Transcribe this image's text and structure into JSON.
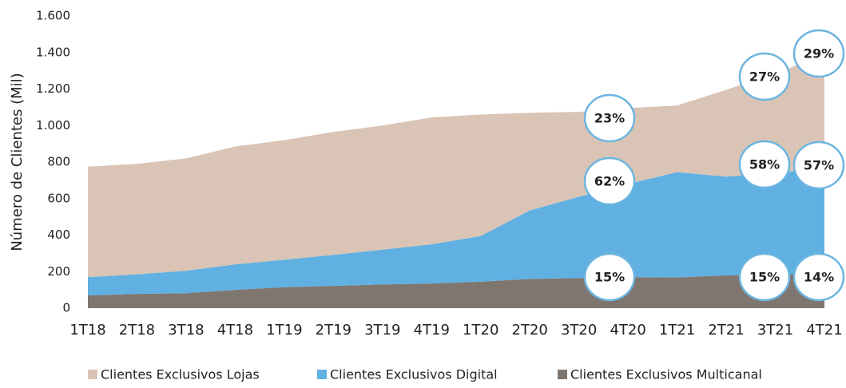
{
  "chart_data": {
    "type": "stacked_area",
    "ylabel": "Número de Clientes (Mil)",
    "categories": [
      "1T18",
      "2T18",
      "3T18",
      "4T18",
      "1T19",
      "2T19",
      "3T19",
      "4T19",
      "1T20",
      "2T20",
      "3T20",
      "4T20",
      "1T21",
      "2T21",
      "3T21",
      "4T21"
    ],
    "series": [
      {
        "name": "Clientes Exclusivos Lojas",
        "color": "#d9c4b6",
        "values": [
          605,
          605,
          615,
          645,
          655,
          673,
          680,
          695,
          665,
          535,
          465,
          415,
          365,
          475,
          550,
          610
        ]
      },
      {
        "name": "Clientes Exclusivos Digital",
        "color": "#60b0e2",
        "values": [
          100,
          107,
          123,
          140,
          150,
          170,
          190,
          215,
          250,
          375,
          445,
          510,
          577,
          540,
          555,
          580
        ]
      },
      {
        "name": "Clientes Exclusivos Multicanal",
        "color": "#7f7670",
        "values": [
          70,
          78,
          82,
          100,
          115,
          122,
          130,
          135,
          145,
          160,
          165,
          170,
          168,
          180,
          185,
          190
        ]
      }
    ],
    "ylim": [
      0,
      1600
    ],
    "yticks": [
      0,
      200,
      400,
      600,
      800,
      {
        "value": 1000,
        "label": "1.000"
      },
      {
        "value": 1200,
        "label": "1.200"
      },
      {
        "value": 1400,
        "label": "1.400"
      },
      {
        "value": 1600,
        "label": "1.600"
      }
    ],
    "annotations": [
      "23%",
      "62%",
      "15%",
      "27%",
      "58%",
      "15%",
      "29%",
      "57%",
      "14%"
    ],
    "legend": "bottom"
  }
}
